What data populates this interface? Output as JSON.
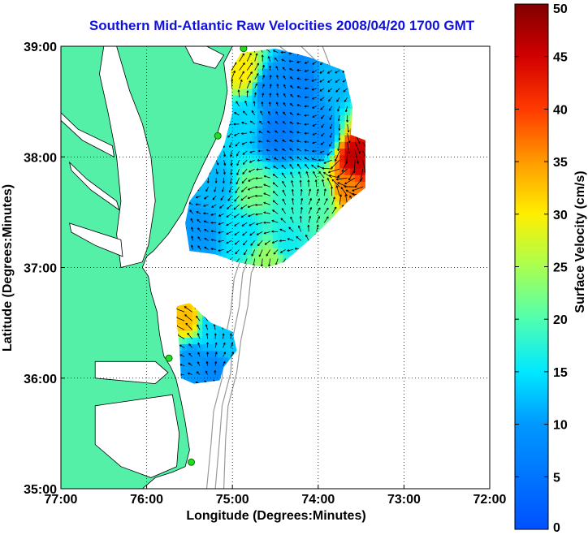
{
  "title": "Southern Mid-Atlantic Raw Velocities 2008/04/20 1700 GMT",
  "chart_data": {
    "type": "heatmap",
    "title": "Southern Mid-Atlantic Raw Velocities 2008/04/20 1700 GMT",
    "xlabel": "Longitude (Degrees:Minutes)",
    "ylabel": "Latitude (Degrees:Minutes)",
    "x_ticks": [
      {
        "value": -77,
        "label": "77:00"
      },
      {
        "value": -76,
        "label": "76:00"
      },
      {
        "value": -75,
        "label": "75:00"
      },
      {
        "value": -74,
        "label": "74:00"
      },
      {
        "value": -73,
        "label": "73:00"
      },
      {
        "value": -72,
        "label": "72:00"
      }
    ],
    "y_ticks": [
      {
        "value": 35,
        "label": "35:00"
      },
      {
        "value": 36,
        "label": "36:00"
      },
      {
        "value": 37,
        "label": "37:00"
      },
      {
        "value": 38,
        "label": "38:00"
      },
      {
        "value": 39,
        "label": "39:00"
      }
    ],
    "xlim": [
      -77,
      -72
    ],
    "ylim": [
      35,
      39
    ],
    "grid": true,
    "colorbar": {
      "label": "Surface Velocity (cm/s)",
      "range": [
        0,
        50
      ],
      "ticks": [
        0,
        5,
        10,
        15,
        20,
        25,
        30,
        35,
        40,
        45,
        50
      ],
      "colormap": "jet"
    },
    "colors": {
      "land": "#55f0a8",
      "title": "#1111dd",
      "bathymetry": "#999999"
    },
    "stations": [
      {
        "lon": -74.87,
        "lat": 38.98
      },
      {
        "lon": -75.17,
        "lat": 38.19
      },
      {
        "lon": -75.74,
        "lat": 36.18
      },
      {
        "lon": -75.48,
        "lat": 35.24
      }
    ],
    "velocity_regions": [
      {
        "name": "northern",
        "outline": [
          [
            -75.02,
            38.78
          ],
          [
            -74.9,
            38.94
          ],
          [
            -74.5,
            38.98
          ],
          [
            -74.1,
            38.9
          ],
          [
            -73.7,
            38.78
          ],
          [
            -73.6,
            38.45
          ],
          [
            -73.62,
            38.2
          ],
          [
            -73.45,
            38.15
          ],
          [
            -73.45,
            37.72
          ],
          [
            -73.65,
            37.6
          ],
          [
            -73.9,
            37.4
          ],
          [
            -74.1,
            37.25
          ],
          [
            -74.4,
            37.05
          ],
          [
            -74.6,
            37.0
          ],
          [
            -74.95,
            37.05
          ],
          [
            -75.2,
            37.12
          ],
          [
            -75.5,
            37.15
          ],
          [
            -75.55,
            37.4
          ],
          [
            -75.5,
            37.6
          ],
          [
            -75.3,
            37.8
          ],
          [
            -75.1,
            38.1
          ],
          [
            -75.0,
            38.4
          ]
        ],
        "samples": [
          {
            "lon": -74.9,
            "lat": 38.75,
            "speed": 30
          },
          {
            "lon": -74.6,
            "lat": 38.6,
            "speed": 8
          },
          {
            "lon": -74.2,
            "lat": 38.65,
            "speed": 7
          },
          {
            "lon": -73.9,
            "lat": 38.7,
            "speed": 12
          },
          {
            "lon": -74.9,
            "lat": 38.3,
            "speed": 14
          },
          {
            "lon": -74.5,
            "lat": 38.2,
            "speed": 6
          },
          {
            "lon": -74.0,
            "lat": 38.15,
            "speed": 8
          },
          {
            "lon": -73.6,
            "lat": 37.95,
            "speed": 46
          },
          {
            "lon": -73.7,
            "lat": 37.7,
            "speed": 36
          },
          {
            "lon": -75.2,
            "lat": 37.7,
            "speed": 12
          },
          {
            "lon": -74.8,
            "lat": 37.65,
            "speed": 22
          },
          {
            "lon": -74.3,
            "lat": 37.55,
            "speed": 18
          },
          {
            "lon": -74.0,
            "lat": 37.6,
            "speed": 20
          },
          {
            "lon": -75.4,
            "lat": 37.3,
            "speed": 10
          },
          {
            "lon": -74.9,
            "lat": 37.3,
            "speed": 15
          },
          {
            "lon": -74.4,
            "lat": 37.2,
            "speed": 16
          },
          {
            "lon": -74.6,
            "lat": 37.05,
            "speed": 24
          }
        ]
      },
      {
        "name": "southern",
        "outline": [
          [
            -75.65,
            36.65
          ],
          [
            -75.5,
            36.68
          ],
          [
            -75.25,
            36.5
          ],
          [
            -75.0,
            36.42
          ],
          [
            -74.95,
            36.25
          ],
          [
            -75.1,
            36.1
          ],
          [
            -75.15,
            35.98
          ],
          [
            -75.45,
            35.95
          ],
          [
            -75.6,
            36.0
          ],
          [
            -75.62,
            36.3
          ],
          [
            -75.65,
            36.5
          ]
        ],
        "samples": [
          {
            "lon": -75.55,
            "lat": 36.5,
            "speed": 33
          },
          {
            "lon": -75.3,
            "lat": 36.45,
            "speed": 14
          },
          {
            "lon": -75.1,
            "lat": 36.3,
            "speed": 13
          },
          {
            "lon": -75.5,
            "lat": 36.15,
            "speed": 10
          },
          {
            "lon": -75.25,
            "lat": 36.05,
            "speed": 8
          }
        ]
      }
    ]
  }
}
